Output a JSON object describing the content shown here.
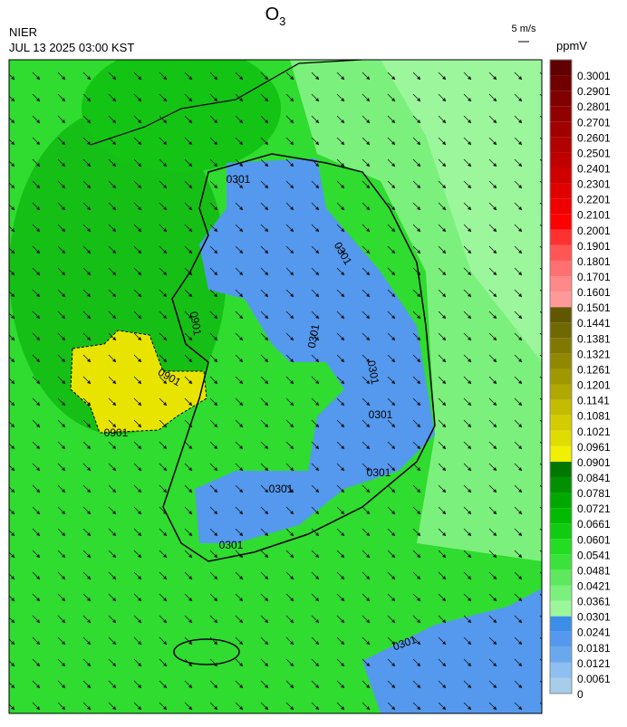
{
  "header": {
    "title": "O",
    "title_sub": "3",
    "agency": "NIER",
    "datetime": "JUL 13 2025 03:00 KST"
  },
  "wind_legend": {
    "label": "5 m/s"
  },
  "colorbar": {
    "unit": "ppmV",
    "ticks": [
      0,
      0.0061,
      0.0121,
      0.0181,
      0.0241,
      0.0301,
      0.0361,
      0.0421,
      0.0481,
      0.0541,
      0.0601,
      0.0661,
      0.0721,
      0.0781,
      0.0841,
      0.0901,
      0.0961,
      0.1021,
      0.1081,
      0.1141,
      0.1201,
      0.1261,
      0.1321,
      0.1381,
      0.1441,
      0.1501,
      0.1601,
      0.1701,
      0.1801,
      0.1901,
      0.2001,
      0.2101,
      0.2201,
      0.2301,
      0.2401,
      0.2501,
      0.2601,
      0.2701,
      0.2801,
      0.2901,
      0.3001
    ],
    "colors": [
      "#a6cdea",
      "#8ebff0",
      "#6aa8ee",
      "#5599ee",
      "#3b8ee8",
      "#9cf79c",
      "#7cf07c",
      "#5ee85e",
      "#3ce23c",
      "#22dd22",
      "#10cc10",
      "#00bb00",
      "#00a800",
      "#009000",
      "#007800",
      "#f0f000",
      "#e0dc00",
      "#d4cc00",
      "#c4bc00",
      "#b0a800",
      "#a09800",
      "#908800",
      "#807800",
      "#706800",
      "#605800",
      "#ff9999",
      "#ff8888",
      "#ff7070",
      "#ff5555",
      "#ff3030",
      "#ff0000",
      "#f00000",
      "#e00000",
      "#d00000",
      "#c00000",
      "#b00000",
      "#a00000",
      "#900000",
      "#800000",
      "#700000",
      "#600000"
    ]
  },
  "map": {
    "contour_labels": [
      "0301",
      "0301",
      "0301",
      "0301",
      "0301",
      "0301",
      "0301",
      "0301",
      "0301",
      "0901",
      "0901",
      "0901"
    ]
  }
}
